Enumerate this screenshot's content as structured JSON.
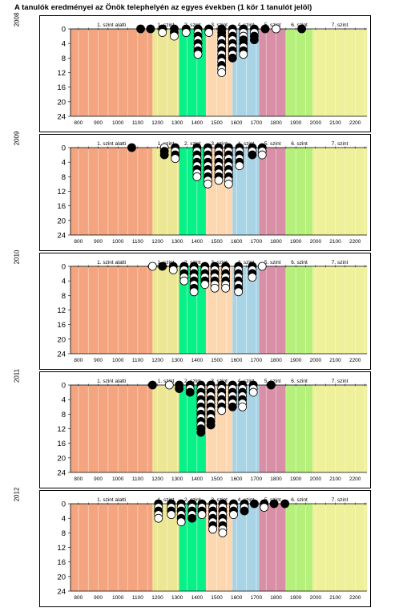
{
  "title": "A tanulók eredményei az Önök telephelyén az egyes években (1 kör 1 tanulót jelöl)",
  "bands": [
    {
      "label": "1. szint alatti",
      "from": 760,
      "to": 1175,
      "color": "#f4a580"
    },
    {
      "label": "1. szint",
      "from": 1175,
      "to": 1310,
      "color": "#ece795"
    },
    {
      "label": "2. szint",
      "from": 1310,
      "to": 1445,
      "color": "#08f088"
    },
    {
      "label": "3. szint",
      "from": 1445,
      "to": 1580,
      "color": "#fcd7b0"
    },
    {
      "label": "4. szint",
      "from": 1580,
      "to": 1715,
      "color": "#a8d4e6"
    },
    {
      "label": "5. szint",
      "from": 1715,
      "to": 1850,
      "color": "#d98fa6"
    },
    {
      "label": "6. szint",
      "from": 1850,
      "to": 1985,
      "color": "#b5f07a"
    },
    {
      "label": "7. szint",
      "from": 1985,
      "to": 2260,
      "color": "#eef09a"
    }
  ],
  "chart_data": [
    {
      "type": "scatter",
      "year": "2008",
      "xlim": [
        760,
        2260
      ],
      "ylim": [
        0,
        24
      ],
      "xticks": [
        800,
        900,
        1000,
        1100,
        1200,
        1300,
        1400,
        1500,
        1600,
        1700,
        1800,
        1900,
        2000,
        2100,
        2200
      ],
      "yticks": [
        0,
        4,
        8,
        12,
        16,
        20,
        24
      ],
      "columns": [
        {
          "x": 1115,
          "fill": [
            "b"
          ]
        },
        {
          "x": 1165,
          "fill": [
            "b"
          ]
        },
        {
          "x": 1225,
          "fill": [
            "b",
            "w"
          ]
        },
        {
          "x": 1285,
          "fill": [
            "b",
            "b",
            "w"
          ]
        },
        {
          "x": 1345,
          "fill": [
            "b",
            "w"
          ]
        },
        {
          "x": 1405,
          "fill": [
            "b",
            "w",
            "b",
            "w",
            "b",
            "w",
            "b",
            "w"
          ]
        },
        {
          "x": 1460,
          "fill": [
            "b",
            "w"
          ]
        },
        {
          "x": 1525,
          "fill": [
            "b",
            "b",
            "b",
            "w",
            "b",
            "w",
            "b",
            "w",
            "b",
            "w",
            "b",
            "w",
            "w"
          ]
        },
        {
          "x": 1580,
          "fill": [
            "b",
            "w",
            "b",
            "w",
            "b",
            "w",
            "b",
            "w",
            "b"
          ]
        },
        {
          "x": 1635,
          "fill": [
            "b",
            "w",
            "w",
            "b",
            "b",
            "w",
            "b",
            "w"
          ]
        },
        {
          "x": 1690,
          "fill": [
            "b",
            "w",
            "b",
            "b"
          ]
        },
        {
          "x": 1745,
          "fill": [
            "b"
          ]
        },
        {
          "x": 1800,
          "fill": [
            "w"
          ]
        },
        {
          "x": 1930,
          "fill": [
            "b"
          ]
        }
      ]
    },
    {
      "type": "scatter",
      "year": "2009",
      "xlim": [
        760,
        2260
      ],
      "ylim": [
        0,
        24
      ],
      "xticks": [
        800,
        900,
        1000,
        1100,
        1200,
        1300,
        1400,
        1500,
        1600,
        1700,
        1800,
        1900,
        2000,
        2100,
        2200
      ],
      "yticks": [
        0,
        4,
        8,
        12,
        16,
        20,
        24
      ],
      "columns": [
        {
          "x": 1070,
          "fill": [
            "b"
          ]
        },
        {
          "x": 1235,
          "fill": [
            "w",
            "b",
            "b"
          ]
        },
        {
          "x": 1290,
          "fill": [
            "b",
            "w",
            "b",
            "w"
          ]
        },
        {
          "x": 1400,
          "fill": [
            "b",
            "w",
            "b",
            "w",
            "b",
            "w",
            "b",
            "w",
            "w"
          ]
        },
        {
          "x": 1455,
          "fill": [
            "b",
            "w",
            "b",
            "w",
            "b",
            "w",
            "b",
            "w",
            "b",
            "w",
            "w"
          ]
        },
        {
          "x": 1510,
          "fill": [
            "b",
            "w",
            "b",
            "w",
            "b",
            "w",
            "b",
            "w",
            "b",
            "w"
          ]
        },
        {
          "x": 1560,
          "fill": [
            "b",
            "w",
            "b",
            "w",
            "b",
            "w",
            "b",
            "w",
            "b",
            "w",
            "w"
          ]
        },
        {
          "x": 1615,
          "fill": [
            "b",
            "w",
            "b",
            "w",
            "b",
            "w"
          ]
        },
        {
          "x": 1680,
          "fill": [
            "b",
            "w",
            "b"
          ]
        },
        {
          "x": 1730,
          "fill": [
            "b",
            "w",
            "w"
          ]
        }
      ]
    },
    {
      "type": "scatter",
      "year": "2010",
      "xlim": [
        760,
        2260
      ],
      "ylim": [
        0,
        24
      ],
      "xticks": [
        800,
        900,
        1000,
        1100,
        1200,
        1300,
        1400,
        1500,
        1600,
        1700,
        1800,
        1900,
        2000,
        2100,
        2200
      ],
      "yticks": [
        0,
        4,
        8,
        12,
        16,
        20,
        24
      ],
      "columns": [
        {
          "x": 1175,
          "fill": [
            "w"
          ]
        },
        {
          "x": 1225,
          "fill": [
            "b"
          ]
        },
        {
          "x": 1280,
          "fill": [
            "b",
            "w"
          ]
        },
        {
          "x": 1335,
          "fill": [
            "b",
            "w",
            "b",
            "w",
            "w"
          ]
        },
        {
          "x": 1385,
          "fill": [
            "b",
            "w",
            "b",
            "w",
            "b",
            "w",
            "b",
            "w"
          ]
        },
        {
          "x": 1440,
          "fill": [
            "b",
            "w",
            "b",
            "w",
            "b",
            "w"
          ]
        },
        {
          "x": 1490,
          "fill": [
            "b",
            "w",
            "b",
            "w",
            "b",
            "w",
            "w"
          ]
        },
        {
          "x": 1545,
          "fill": [
            "b",
            "w",
            "b",
            "w",
            "b",
            "w",
            "w"
          ]
        },
        {
          "x": 1610,
          "fill": [
            "b",
            "w",
            "b",
            "w",
            "b",
            "w",
            "b",
            "w"
          ]
        },
        {
          "x": 1680,
          "fill": [
            "b",
            "w",
            "b",
            "w"
          ]
        },
        {
          "x": 1730,
          "fill": [
            "w"
          ]
        }
      ]
    },
    {
      "type": "scatter",
      "year": "2011",
      "xlim": [
        760,
        2260
      ],
      "ylim": [
        0,
        24
      ],
      "xticks": [
        800,
        900,
        1000,
        1100,
        1200,
        1300,
        1400,
        1500,
        1600,
        1700,
        1800,
        1900,
        2000,
        2100,
        2200
      ],
      "yticks": [
        0,
        4,
        8,
        12,
        16,
        20,
        24
      ],
      "columns": [
        {
          "x": 1175,
          "fill": [
            "b"
          ]
        },
        {
          "x": 1260,
          "fill": [
            "w"
          ]
        },
        {
          "x": 1310,
          "fill": [
            "b",
            "b"
          ]
        },
        {
          "x": 1365,
          "fill": [
            "b",
            "w",
            "b"
          ]
        },
        {
          "x": 1420,
          "fill": [
            "b",
            "w",
            "b",
            "w",
            "b",
            "w",
            "b",
            "w",
            "b",
            "w",
            "b",
            "w",
            "b",
            "b"
          ]
        },
        {
          "x": 1470,
          "fill": [
            "b",
            "w",
            "b",
            "w",
            "b",
            "w",
            "b",
            "w",
            "b",
            "w",
            "b",
            "b"
          ]
        },
        {
          "x": 1525,
          "fill": [
            "b",
            "w",
            "b",
            "w",
            "b",
            "w",
            "b",
            "w"
          ]
        },
        {
          "x": 1580,
          "fill": [
            "b",
            "w",
            "b",
            "w",
            "b",
            "w",
            "b"
          ]
        },
        {
          "x": 1630,
          "fill": [
            "b",
            "w",
            "b",
            "w",
            "b",
            "w",
            "w"
          ]
        },
        {
          "x": 1685,
          "fill": [
            "b",
            "w",
            "w"
          ]
        },
        {
          "x": 1775,
          "fill": [
            "b"
          ]
        }
      ]
    },
    {
      "type": "scatter",
      "year": "2012",
      "xlim": [
        760,
        2260
      ],
      "ylim": [
        0,
        24
      ],
      "xticks": [
        800,
        900,
        1000,
        1100,
        1200,
        1300,
        1400,
        1500,
        1600,
        1700,
        1800,
        1900,
        2000,
        2100,
        2200
      ],
      "yticks": [
        0,
        4,
        8,
        12,
        16,
        20,
        24
      ],
      "columns": [
        {
          "x": 1205,
          "fill": [
            "b",
            "w",
            "b",
            "w",
            "w"
          ]
        },
        {
          "x": 1270,
          "fill": [
            "b",
            "w",
            "b",
            "w"
          ]
        },
        {
          "x": 1320,
          "fill": [
            "b",
            "w",
            "b",
            "w",
            "b",
            "w"
          ]
        },
        {
          "x": 1375,
          "fill": [
            "b",
            "w",
            "b",
            "w",
            "b"
          ]
        },
        {
          "x": 1425,
          "fill": [
            "b",
            "w",
            "b",
            "w"
          ]
        },
        {
          "x": 1480,
          "fill": [
            "b",
            "w",
            "b",
            "w",
            "b",
            "w",
            "b",
            "w"
          ]
        },
        {
          "x": 1530,
          "fill": [
            "b",
            "w",
            "b",
            "w",
            "b",
            "w",
            "b",
            "w",
            "w"
          ]
        },
        {
          "x": 1585,
          "fill": [
            "b",
            "w",
            "b",
            "w"
          ]
        },
        {
          "x": 1640,
          "fill": [
            "b",
            "w",
            "b"
          ]
        },
        {
          "x": 1690,
          "fill": [
            "b"
          ]
        },
        {
          "x": 1740,
          "fill": [
            "b",
            "w"
          ]
        },
        {
          "x": 1790,
          "fill": [
            "b"
          ]
        },
        {
          "x": 1845,
          "fill": [
            "b"
          ]
        }
      ]
    }
  ]
}
